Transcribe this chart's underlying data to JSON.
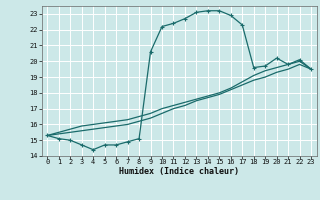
{
  "xlabel": "Humidex (Indice chaleur)",
  "background_color": "#cce8e8",
  "grid_color": "#aacccc",
  "line_color": "#1a6b6b",
  "xlim": [
    -0.5,
    23.5
  ],
  "ylim": [
    14,
    23.5
  ],
  "yticks": [
    14,
    15,
    16,
    17,
    18,
    19,
    20,
    21,
    22,
    23
  ],
  "xticks": [
    0,
    1,
    2,
    3,
    4,
    5,
    6,
    7,
    8,
    9,
    10,
    11,
    12,
    13,
    14,
    15,
    16,
    17,
    18,
    19,
    20,
    21,
    22,
    23
  ],
  "curve1_x": [
    0,
    1,
    2,
    3,
    4,
    5,
    6,
    7,
    8,
    9,
    10,
    11,
    12,
    13,
    14,
    15,
    16,
    17,
    18,
    19,
    20,
    21,
    22,
    23
  ],
  "curve1_y": [
    15.3,
    15.1,
    15.0,
    14.7,
    14.4,
    14.7,
    14.7,
    14.9,
    15.1,
    20.6,
    22.2,
    22.4,
    22.7,
    23.1,
    23.2,
    23.2,
    22.9,
    22.3,
    19.6,
    19.7,
    20.2,
    19.8,
    20.1,
    19.5
  ],
  "curve2_x": [
    0,
    1,
    2,
    3,
    4,
    5,
    6,
    7,
    8,
    9,
    10,
    11,
    12,
    13,
    14,
    15,
    16,
    17,
    18,
    19,
    20,
    21,
    22,
    23
  ],
  "curve2_y": [
    15.3,
    15.4,
    15.5,
    15.6,
    15.7,
    15.8,
    15.9,
    16.0,
    16.2,
    16.4,
    16.7,
    17.0,
    17.2,
    17.5,
    17.7,
    17.9,
    18.2,
    18.5,
    18.8,
    19.0,
    19.3,
    19.5,
    19.8,
    19.5
  ],
  "curve3_x": [
    0,
    1,
    2,
    3,
    4,
    5,
    6,
    7,
    8,
    9,
    10,
    11,
    12,
    13,
    14,
    15,
    16,
    17,
    18,
    19,
    20,
    21,
    22,
    23
  ],
  "curve3_y": [
    15.3,
    15.5,
    15.7,
    15.9,
    16.0,
    16.1,
    16.2,
    16.3,
    16.5,
    16.7,
    17.0,
    17.2,
    17.4,
    17.6,
    17.8,
    18.0,
    18.3,
    18.7,
    19.1,
    19.4,
    19.6,
    19.8,
    20.0,
    19.5
  ]
}
